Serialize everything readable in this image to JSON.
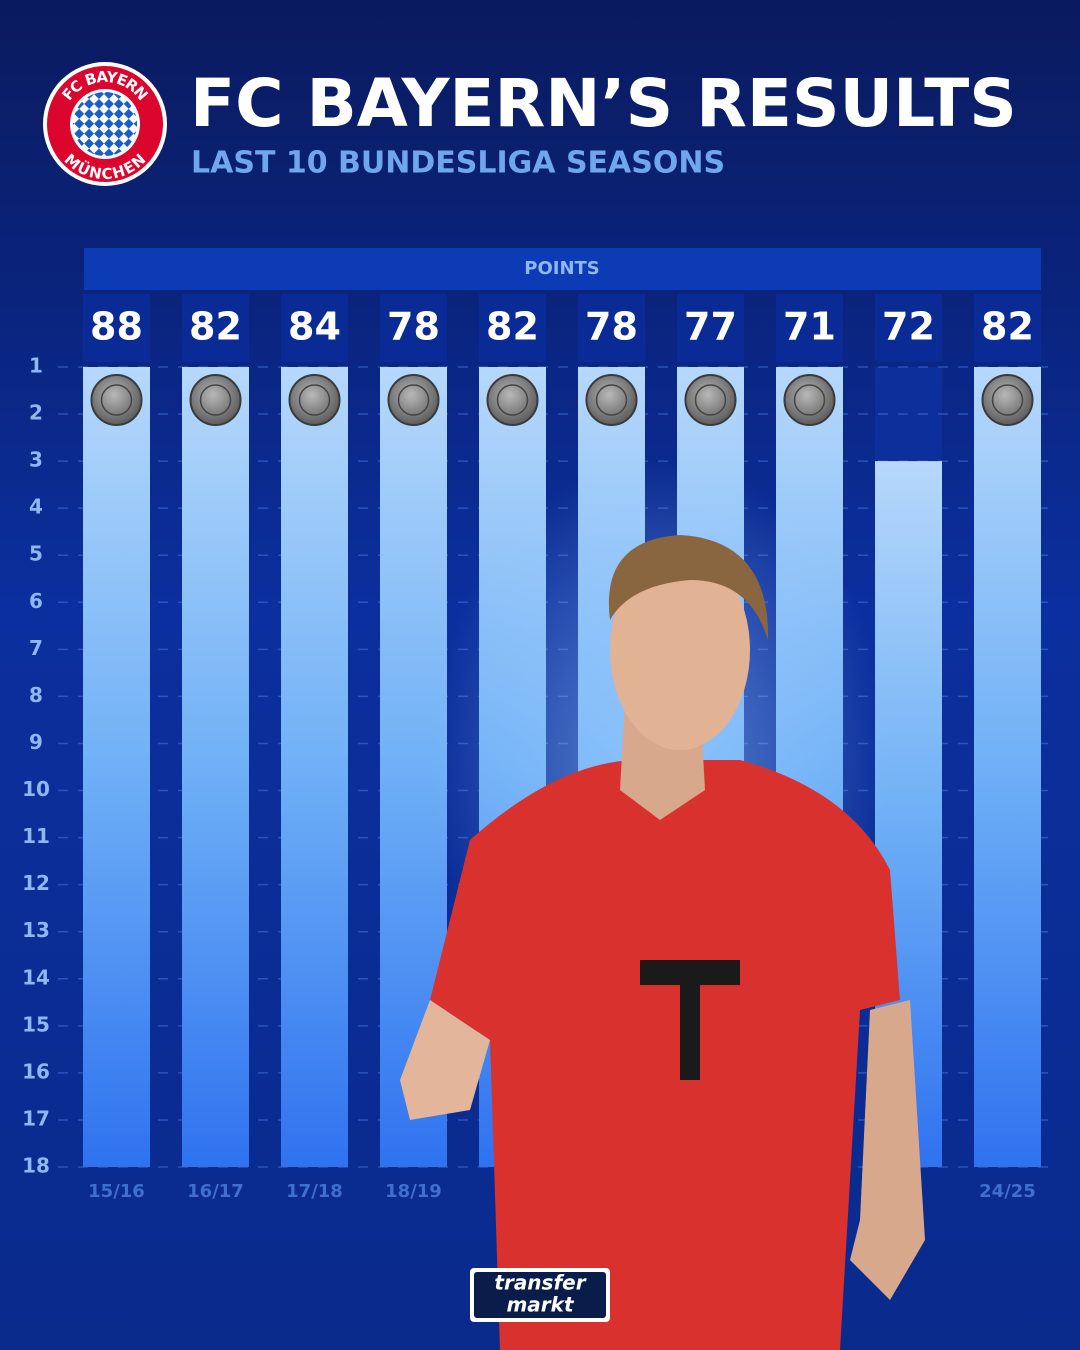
{
  "chart_data": {
    "type": "bar",
    "title": "FC BAYERN’S RESULTS",
    "subtitle": "LAST 10 BUNDESLIGA SEASONS",
    "logo": {
      "top": "FC BAYERN",
      "bottom": "MÜNCHEN"
    },
    "points_label": "POINTS",
    "categories": [
      "15/16",
      "16/17",
      "17/18",
      "18/19",
      null,
      null,
      null,
      null,
      null,
      "24/25"
    ],
    "values": [
      1,
      1,
      1,
      1,
      1,
      1,
      1,
      1,
      3,
      1
    ],
    "points": [
      88,
      82,
      84,
      78,
      82,
      78,
      77,
      71,
      72,
      82
    ],
    "ylim": [
      18,
      1
    ],
    "yticks": [
      1,
      2,
      3,
      4,
      5,
      6,
      7,
      8,
      9,
      10,
      11,
      12,
      13,
      14,
      15,
      16,
      17,
      18
    ],
    "grid": true,
    "color": "#5aa4f5",
    "brand": [
      "transfer",
      "markt"
    ]
  }
}
